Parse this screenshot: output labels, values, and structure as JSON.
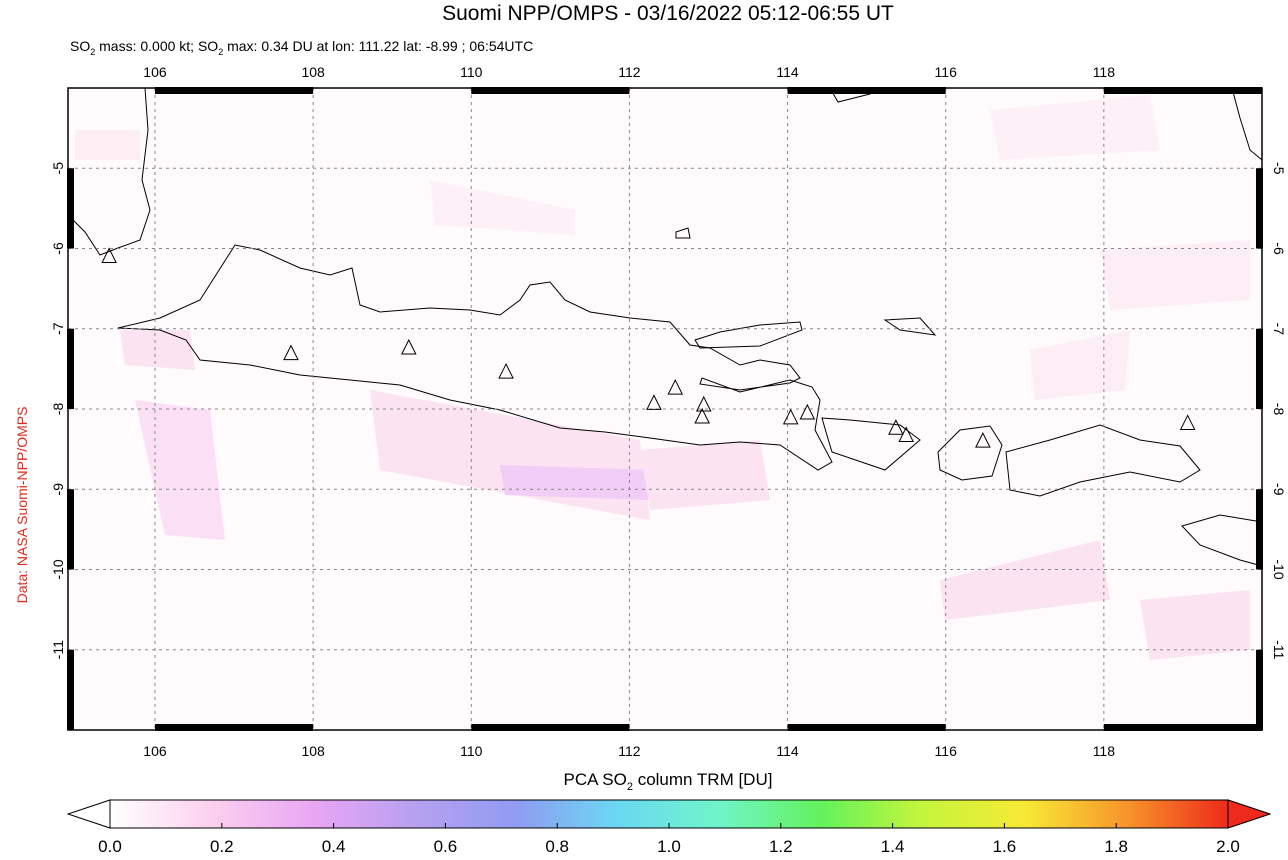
{
  "chart_data": {
    "type": "map",
    "title": "Suomi NPP/OMPS - 03/16/2022 05:12-06:55 UT",
    "subtitle": [
      "SO",
      "2",
      " mass: 0.000 kt; SO",
      "2",
      " max: 0.34 DU at lon: 111.22 lat: -8.99 ; 06:54UTC"
    ],
    "source": "Data: NASA Suomi-NPP/OMPS",
    "xlim": [
      104.9,
      120
    ],
    "ylim": [
      -12,
      -4
    ],
    "xticks": [
      106,
      108,
      110,
      112,
      114,
      116,
      118
    ],
    "yticks": [
      -5,
      -6,
      -7,
      -8,
      -9,
      -10,
      -11
    ],
    "grid": true,
    "volcanoes": {
      "lon": [
        105.42,
        107.72,
        109.21,
        110.44,
        112.31,
        112.58,
        112.94,
        112.92,
        114.04,
        114.25,
        115.37,
        115.5,
        116.47,
        119.06
      ],
      "lat": [
        -6.1,
        -7.31,
        -7.24,
        -7.54,
        -7.93,
        -7.74,
        -7.95,
        -8.1,
        -8.11,
        -8.05,
        -8.24,
        -8.33,
        -8.4,
        -8.18
      ]
    },
    "colorbar": {
      "label": [
        "PCA SO",
        "2",
        " column TRM [DU]"
      ],
      "lim": [
        0,
        2
      ],
      "ticks": [
        {
          "value": 0,
          "label": "0.0"
        },
        0.2,
        0.4,
        0.6,
        0.8,
        {
          "value": 1,
          "label": "1.0"
        },
        1.2,
        1.4,
        1.6,
        1.8,
        {
          "value": 2,
          "label": "2.0"
        }
      ],
      "colors": [
        "#ffffff",
        "#fbd0ee",
        "#e9a6f5",
        "#b8a0f0",
        "#8f9cf2",
        "#6ad8f2",
        "#6ff5c8",
        "#63f25c",
        "#c5f53c",
        "#f7e935",
        "#f7952a",
        "#ee2a1c"
      ]
    }
  }
}
